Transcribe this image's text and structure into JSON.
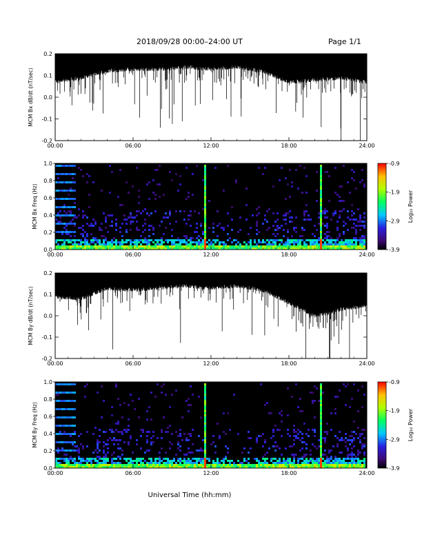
{
  "header": {
    "title": "2018/09/28  00:00–24:00 UT",
    "page": "Page 1/1"
  },
  "footer": {
    "xlabel": "Universal Time (hh:mm)"
  },
  "colors": {
    "background": "#ffffff",
    "trace": "#000000",
    "spectrogram_bg": "#000000"
  },
  "chart_data": [
    {
      "type": "line",
      "ylabel": "MCM Bx dB/dt (nT/sec)",
      "ylim": [
        -0.2,
        0.2
      ],
      "yticks": [
        "0.2",
        "0.1",
        "0.0",
        "-0.1",
        "-0.2"
      ],
      "xlim": [
        "00:00",
        "24:00"
      ],
      "xticks": [
        "00:00",
        "06:00",
        "12:00",
        "18:00",
        "24:00"
      ],
      "series": [
        {
          "x": [
            "00:00",
            "02:00",
            "04:00",
            "06:00",
            "08:00",
            "10:00",
            "12:00",
            "14:00",
            "16:00",
            "18:00",
            "20:00",
            "22:00",
            "24:00"
          ],
          "values": [
            0.08,
            0.1,
            0.13,
            0.14,
            0.14,
            0.15,
            0.14,
            0.15,
            0.13,
            0.08,
            0.09,
            0.1,
            0.08
          ]
        }
      ]
    },
    {
      "type": "heatmap",
      "ylabel": "MCM Bx Freq (Hz)",
      "ylim": [
        0.0,
        1.0
      ],
      "yticks": [
        "1.0",
        "0.8",
        "0.6",
        "0.4",
        "0.2",
        "0.0"
      ],
      "xlim": [
        "00:00",
        "24:00"
      ],
      "xticks": [
        "00:00",
        "06:00",
        "12:00",
        "18:00",
        "24:00"
      ],
      "colorbar": {
        "label": "Log₁₀ Power",
        "ticks": [
          "-0.9",
          "-1.9",
          "-2.9",
          "-3.9"
        ],
        "range": [
          -3.9,
          -0.9
        ]
      },
      "features": [
        {
          "x": "11:30",
          "desc": "broadband spike"
        },
        {
          "x": "20:30",
          "desc": "broadband spike"
        }
      ]
    },
    {
      "type": "line",
      "ylabel": "MCM By dB/dt (nT/sec)",
      "ylim": [
        -0.2,
        0.2
      ],
      "yticks": [
        "0.2",
        "0.1",
        "0.0",
        "-0.1",
        "-0.2"
      ],
      "xlim": [
        "00:00",
        "24:00"
      ],
      "xticks": [
        "00:00",
        "06:00",
        "12:00",
        "18:00",
        "24:00"
      ],
      "series": [
        {
          "x": [
            "00:00",
            "02:00",
            "04:00",
            "06:00",
            "08:00",
            "10:00",
            "12:00",
            "14:00",
            "16:00",
            "18:00",
            "20:00",
            "22:00",
            "24:00"
          ],
          "values": [
            0.1,
            0.09,
            0.14,
            0.13,
            0.14,
            0.15,
            0.14,
            0.15,
            0.13,
            0.07,
            0.01,
            0.04,
            0.06
          ]
        }
      ]
    },
    {
      "type": "heatmap",
      "ylabel": "MCM By Freq (Hz)",
      "ylim": [
        0.0,
        1.0
      ],
      "yticks": [
        "1.0",
        "0.8",
        "0.6",
        "0.4",
        "0.2",
        "0.0"
      ],
      "xlim": [
        "00:00",
        "24:00"
      ],
      "xticks": [
        "00:00",
        "06:00",
        "12:00",
        "18:00",
        "24:00"
      ],
      "colorbar": {
        "label": "Log₁₀ Power",
        "ticks": [
          "-0.9",
          "-1.9",
          "-2.9",
          "-3.9"
        ],
        "range": [
          -3.9,
          -0.9
        ]
      },
      "features": [
        {
          "x": "11:30",
          "desc": "broadband spike"
        },
        {
          "x": "20:30",
          "desc": "broadband spike"
        }
      ]
    }
  ]
}
